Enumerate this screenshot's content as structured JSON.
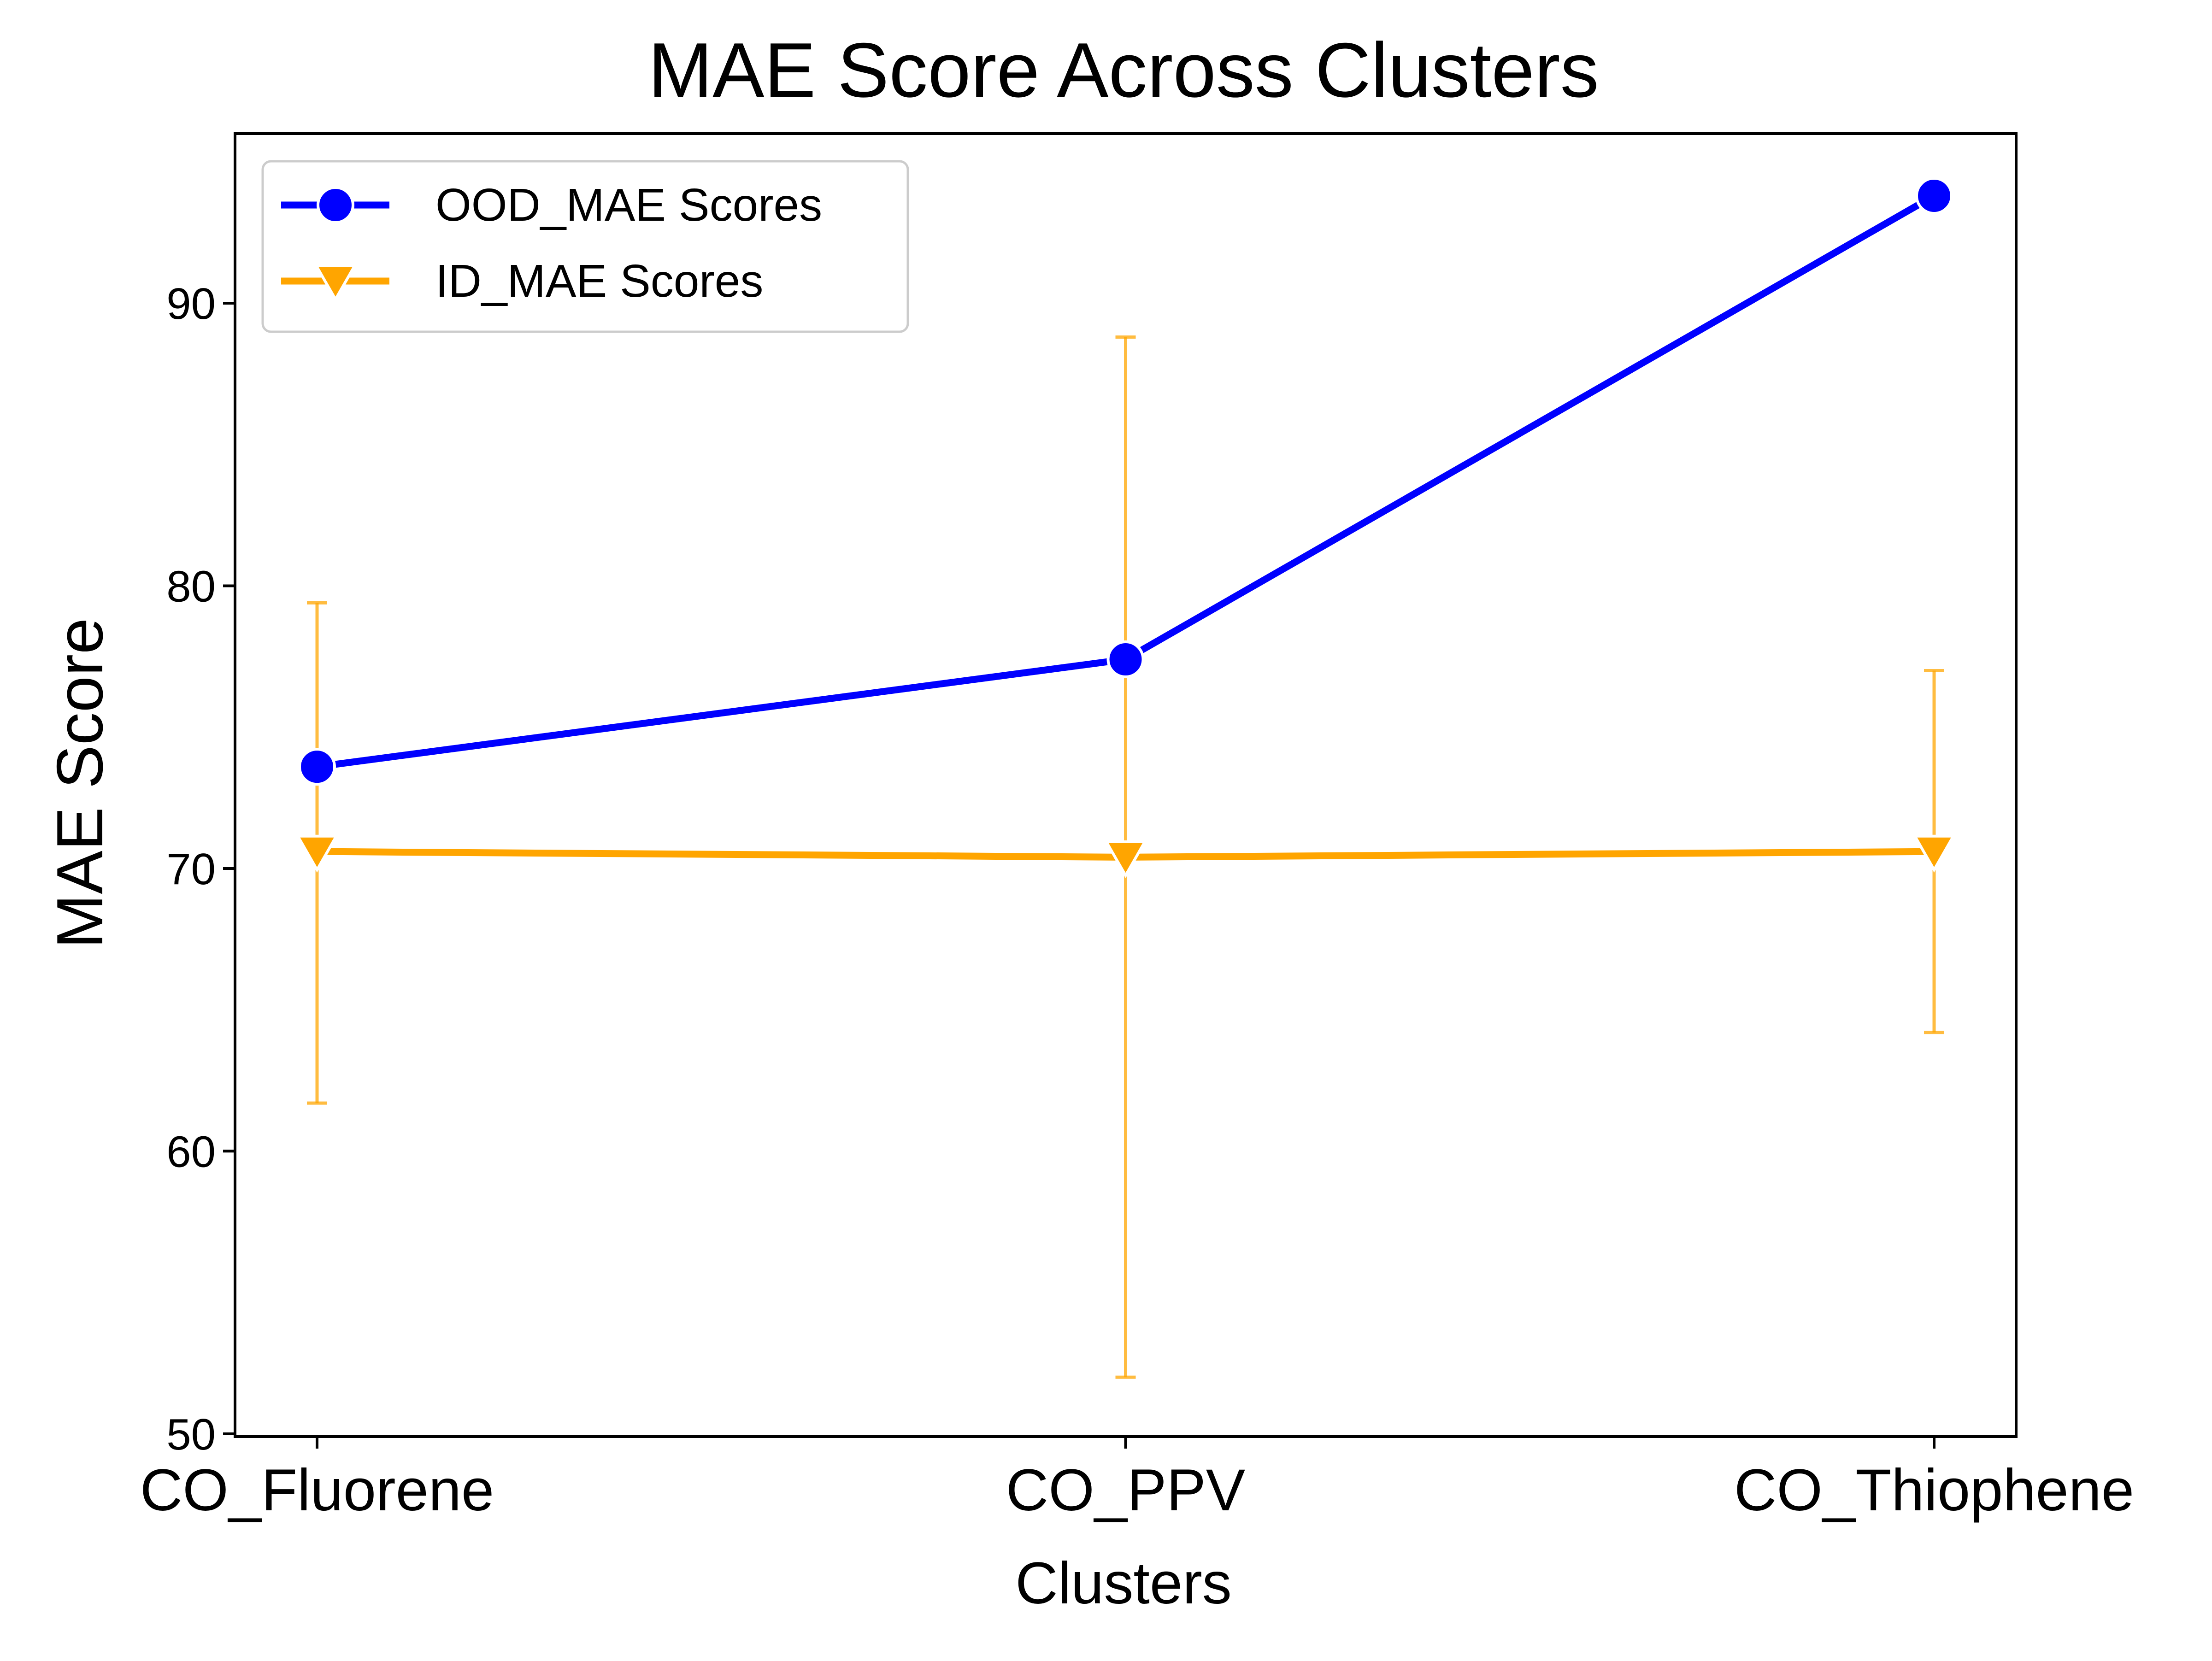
{
  "chart_data": {
    "type": "line",
    "title": "MAE Score Across Clusters",
    "xlabel": "Clusters",
    "ylabel": "MAE Score",
    "categories": [
      "CO_Fluorene",
      "CO_PPV",
      "CO_Thiophene"
    ],
    "ylim": [
      49.9,
      96
    ],
    "yticks": [
      50,
      60,
      70,
      80,
      90
    ],
    "grid": false,
    "legend_position": "top-left",
    "series": [
      {
        "name": "OOD_MAE Scores",
        "color": "#0000ff",
        "marker": "circle",
        "values": [
          73.6,
          77.4,
          93.8
        ]
      },
      {
        "name": "ID_MAE Scores",
        "color": "#ffa500",
        "marker": "triangle-down",
        "values": [
          70.6,
          70.4,
          70.6
        ],
        "error_low": [
          61.7,
          52.0,
          64.2
        ],
        "error_high": [
          79.4,
          88.8,
          77.0
        ]
      }
    ]
  }
}
